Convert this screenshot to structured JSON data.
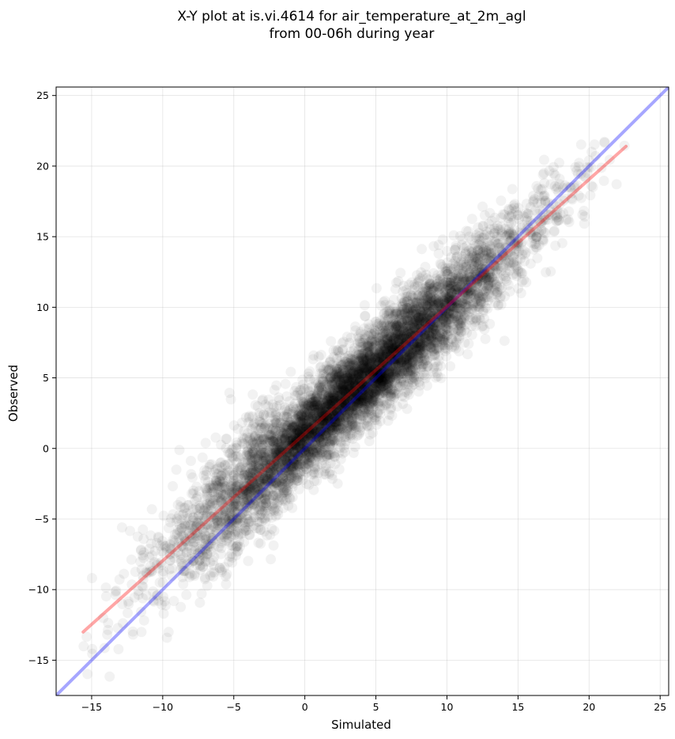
{
  "chart_data": {
    "type": "scatter",
    "title": "X-Y plot at is.vi.4614 for air_temperature_at_2m_agl",
    "subtitle": "from 00-06h during year",
    "xlabel": "Simulated",
    "ylabel": "Observed",
    "xlim": [
      -17.5,
      25.6
    ],
    "ylim": [
      -17.5,
      25.6
    ],
    "xticks": [
      -15,
      -10,
      -5,
      0,
      5,
      10,
      15,
      20,
      25
    ],
    "yticks": [
      -15,
      -10,
      -5,
      0,
      5,
      10,
      15,
      20,
      25
    ],
    "tick_labels": [
      "−15",
      "−10",
      "−5",
      "0",
      "5",
      "10",
      "15",
      "20",
      "25"
    ],
    "grid": true,
    "lines": [
      {
        "kind": "identity",
        "color": "#0000ff",
        "x": [
          -17.5,
          25.6
        ],
        "y": [
          -17.5,
          25.6
        ]
      },
      {
        "kind": "regression",
        "color": "#ff0000",
        "x": [
          -15.6,
          22.6
        ],
        "y": [
          -13.0,
          21.4
        ]
      }
    ],
    "scatter": {
      "color": "#000000",
      "n_points": 7000,
      "x_range": [
        -15.6,
        22.6
      ],
      "regression_slope": 0.9,
      "regression_intercept": 1.05,
      "residual_sd": 1.6
    }
  }
}
